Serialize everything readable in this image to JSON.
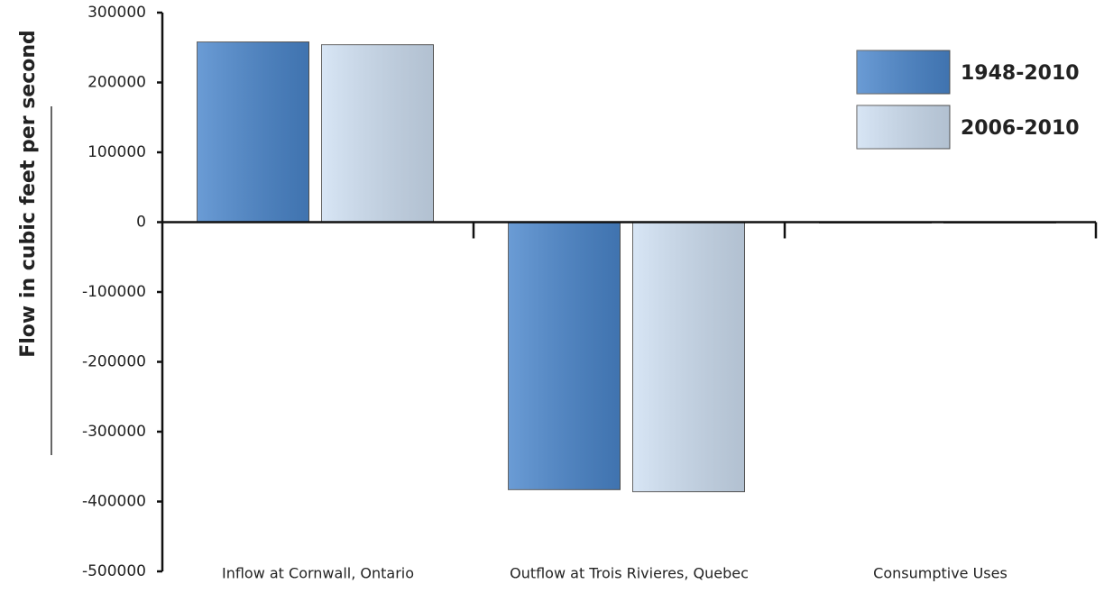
{
  "chart_data": {
    "type": "bar",
    "y_label": "Flow in cubic feet per second",
    "categories": [
      "Inflow at Cornwall, Ontario",
      "Outflow at Trois Rivieres, Quebec",
      "Consumptive Uses"
    ],
    "series": [
      {
        "name": "1948-2010",
        "color": "#4a86cc",
        "values": [
          258000,
          -383000,
          -1000
        ]
      },
      {
        "name": "2006-2010",
        "color": "#cfe0f3",
        "values": [
          254000,
          -386000,
          -1000
        ]
      }
    ],
    "ylim": [
      -500000,
      300000
    ],
    "yticks": [
      -500000,
      -400000,
      -300000,
      -200000,
      -100000,
      0,
      100000,
      200000,
      300000
    ],
    "legend": "top-right"
  }
}
